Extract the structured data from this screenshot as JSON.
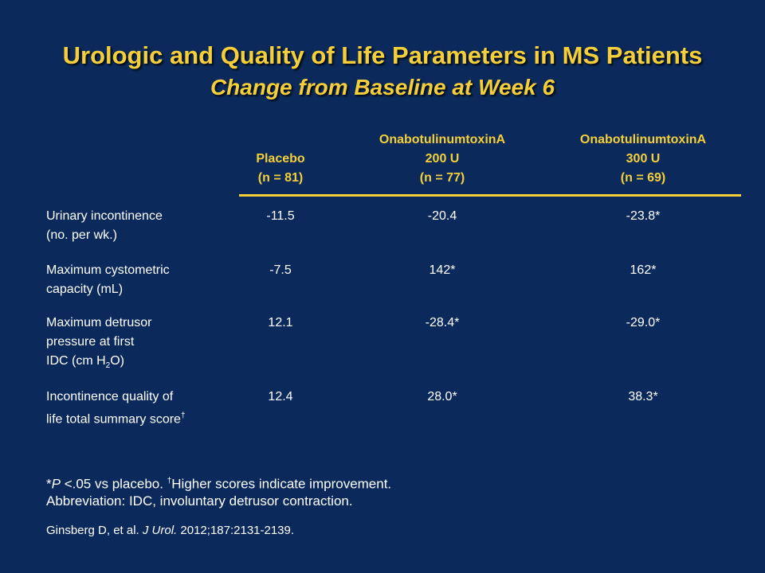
{
  "title": "Urologic and Quality of Life Parameters in MS Patients",
  "subtitle": "Change from Baseline at Week 6",
  "columns": [
    {
      "name": "Placebo",
      "dose": "",
      "n": "(n = 81)"
    },
    {
      "name": "OnabotulinumtoxinA",
      "dose": "200 U",
      "n": "(n = 77)"
    },
    {
      "name": "OnabotulinumtoxinA",
      "dose": "300 U",
      "n": "(n = 69)"
    }
  ],
  "rows": [
    {
      "label_line1": "Urinary incontinence",
      "label_line2": "(no. per wk.)",
      "values": [
        "-11.5",
        "-20.4",
        "-23.8*"
      ]
    },
    {
      "label_line1": "Maximum cystometric",
      "label_line2": "capacity (mL)",
      "values": [
        "-7.5",
        "142*",
        "162*"
      ]
    },
    {
      "label_line1": "Maximum detrusor",
      "label_line2": "pressure at first",
      "label_line3_pre": "IDC (cm H",
      "label_line3_sub": "2",
      "label_line3_post": "O)",
      "values": [
        "12.1",
        "-28.4*",
        "-29.0*"
      ]
    },
    {
      "label_line1": "Incontinence quality of",
      "label_line2": "life total summary score",
      "label_line2_sup": "†",
      "values": [
        "12.4",
        "28.0*",
        "38.3*"
      ]
    }
  ],
  "footnotes": {
    "p_pre": "*",
    "p_italic": "P",
    "p_text": " <.05 vs placebo. ",
    "dagger": "†",
    "dagger_text": "Higher scores indicate improvement.",
    "abbreviation": "Abbreviation: IDC, involuntary detrusor contraction."
  },
  "reference": {
    "authors": "Ginsberg D, et al. ",
    "journal": "J Urol.",
    "details": " 2012;187:2131-2139."
  }
}
